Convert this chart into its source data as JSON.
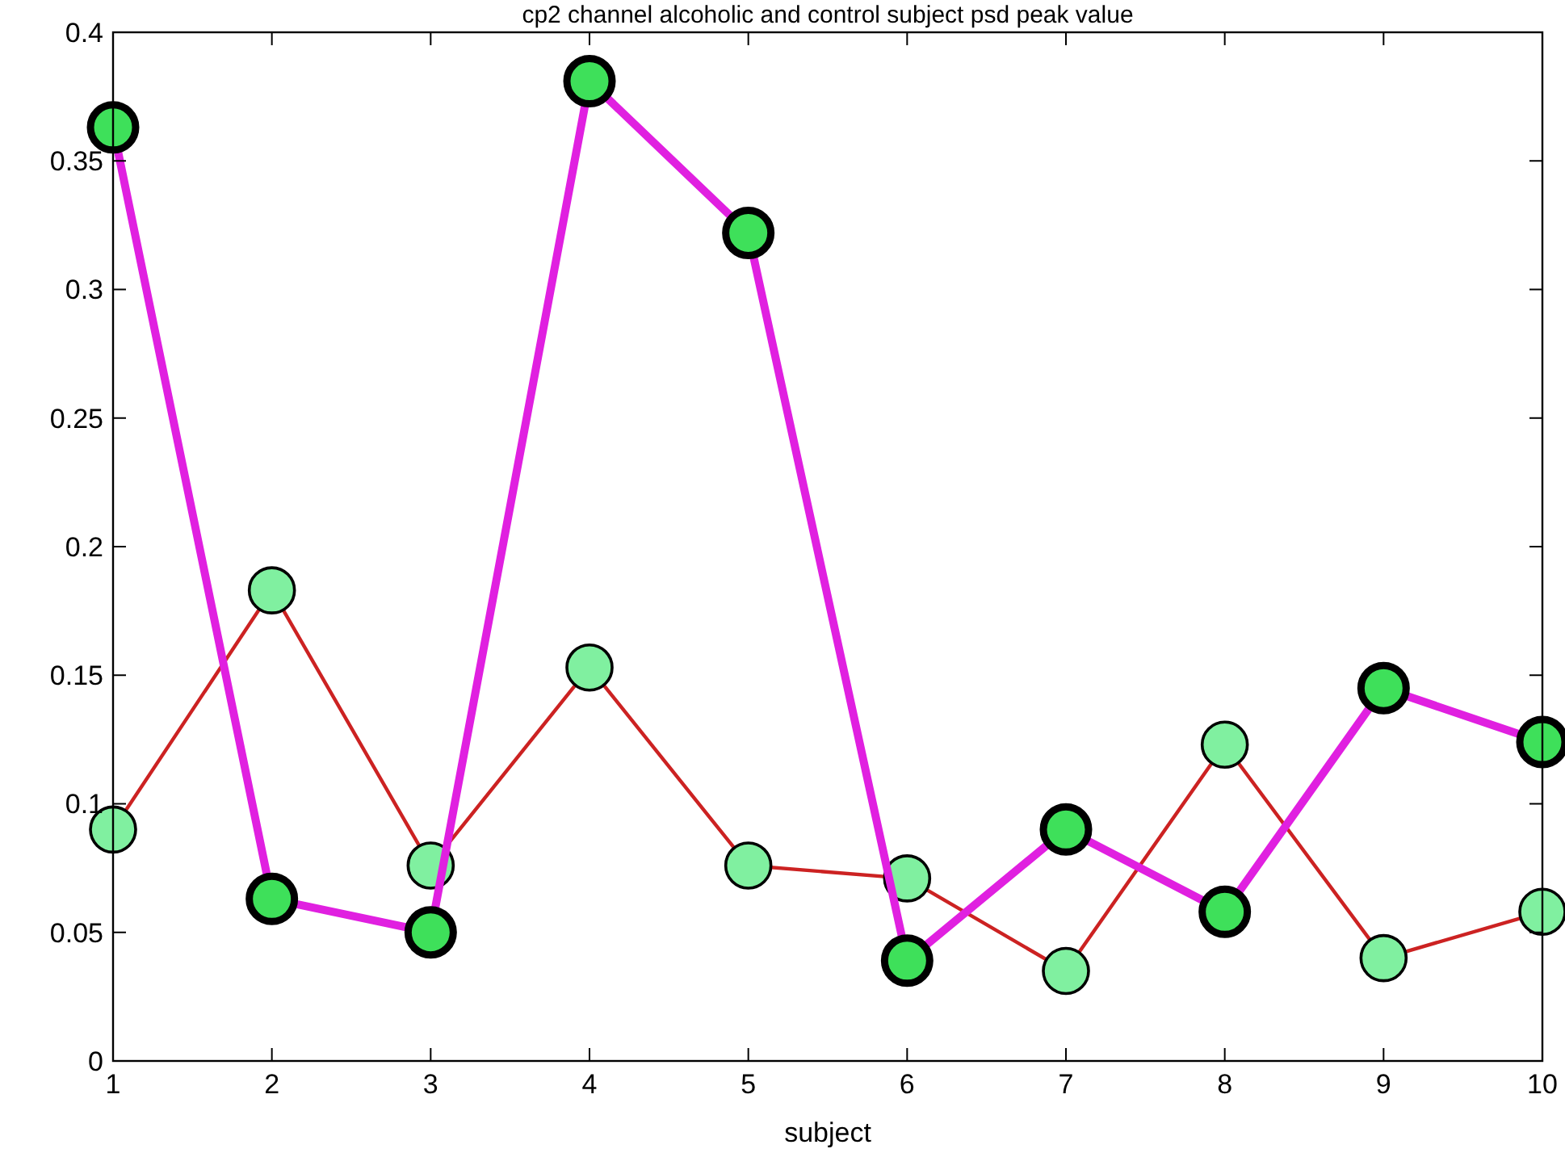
{
  "chart_data": {
    "type": "line",
    "title": "cp2 channel alcoholic and control subject psd peak value",
    "xlabel": "subject",
    "x": [
      1,
      2,
      3,
      4,
      5,
      6,
      7,
      8,
      9,
      10
    ],
    "xlim": [
      1,
      10
    ],
    "xticks": [
      1,
      2,
      3,
      4,
      5,
      6,
      7,
      8,
      9,
      10
    ],
    "ylim": [
      0,
      0.4
    ],
    "yticks": [
      0,
      0.05,
      0.1,
      0.15,
      0.2,
      0.25,
      0.3,
      0.35,
      0.4
    ],
    "grid": false,
    "marker": "circle",
    "line_style": "solid",
    "series": [
      {
        "color": "#cc2222",
        "values": [
          0.09,
          0.183,
          0.076,
          0.153,
          0.076,
          0.071,
          0.035,
          0.123,
          0.04,
          0.058
        ]
      },
      {
        "color": "#e020e0",
        "values": [
          0.363,
          0.063,
          0.05,
          0.381,
          0.322,
          0.039,
          0.09,
          0.058,
          0.145,
          0.124
        ]
      }
    ]
  }
}
